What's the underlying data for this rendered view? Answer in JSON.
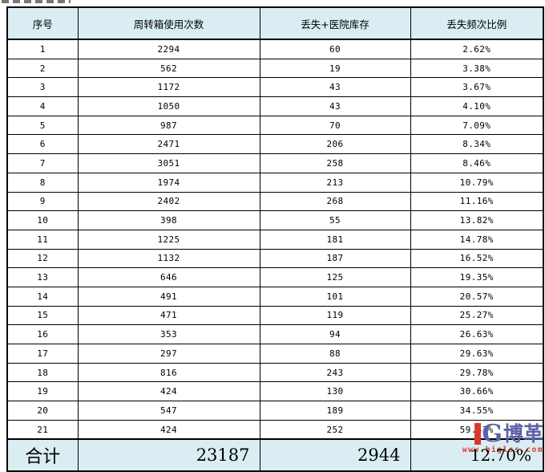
{
  "chart_data": {
    "type": "table",
    "columns": [
      "序号",
      "周转箱使用次数",
      "丢失+医院库存",
      "丢失频次比例"
    ],
    "rows": [
      [
        "1",
        "2294",
        "60",
        "2.62%"
      ],
      [
        "2",
        "562",
        "19",
        "3.38%"
      ],
      [
        "3",
        "1172",
        "43",
        "3.67%"
      ],
      [
        "4",
        "1050",
        "43",
        "4.10%"
      ],
      [
        "5",
        "987",
        "70",
        "7.09%"
      ],
      [
        "6",
        "2471",
        "206",
        "8.34%"
      ],
      [
        "7",
        "3051",
        "258",
        "8.46%"
      ],
      [
        "8",
        "1974",
        "213",
        "10.79%"
      ],
      [
        "9",
        "2402",
        "268",
        "11.16%"
      ],
      [
        "10",
        "398",
        "55",
        "13.82%"
      ],
      [
        "11",
        "1225",
        "181",
        "14.78%"
      ],
      [
        "12",
        "1132",
        "187",
        "16.52%"
      ],
      [
        "13",
        "646",
        "125",
        "19.35%"
      ],
      [
        "14",
        "491",
        "101",
        "20.57%"
      ],
      [
        "15",
        "471",
        "119",
        "25.27%"
      ],
      [
        "16",
        "353",
        "94",
        "26.63%"
      ],
      [
        "17",
        "297",
        "88",
        "29.63%"
      ],
      [
        "18",
        "816",
        "243",
        "29.78%"
      ],
      [
        "19",
        "424",
        "130",
        "30.66%"
      ],
      [
        "20",
        "547",
        "189",
        "34.55%"
      ],
      [
        "21",
        "424",
        "252",
        "59.43%"
      ]
    ],
    "total": {
      "label": "合计",
      "usage_total": "23187",
      "loss_total": "2944",
      "ratio_total": "12.70%"
    },
    "title": "",
    "layout": "grid-table, light-blue header and total bands, black borders"
  },
  "watermark": {
    "logo_letter": "G",
    "brand": "博革",
    "url": "www.biglss.com"
  },
  "colors": {
    "band_bg": "#d9edf3",
    "border": "#000000",
    "watermark_red": "#d93a30",
    "watermark_blue": "#5b62a8"
  }
}
